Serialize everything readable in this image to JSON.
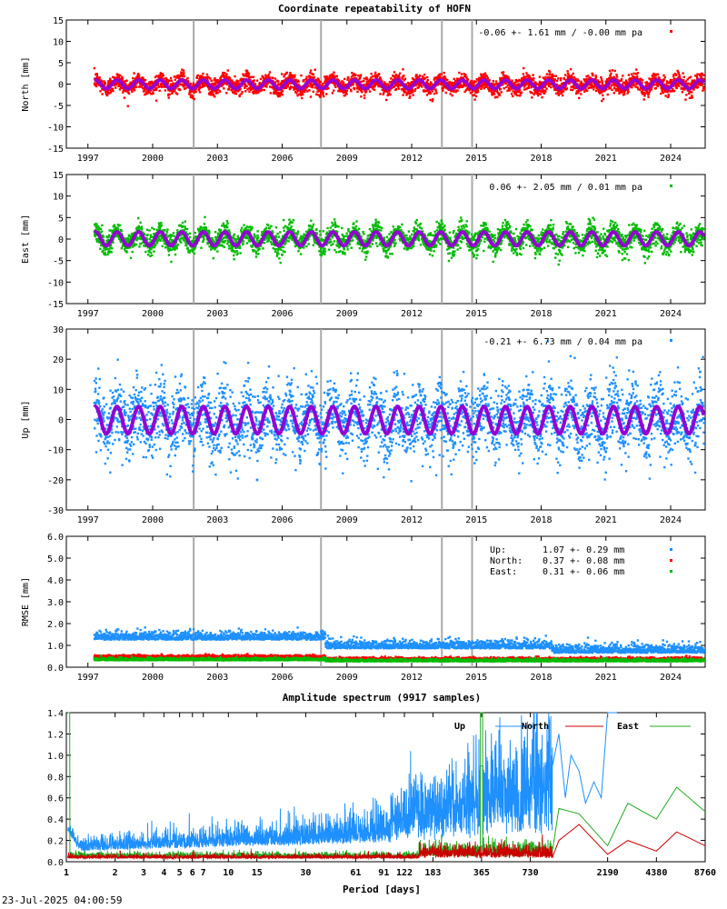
{
  "page_title": "Coordinate repeatability of HOFN",
  "timestamp": "23-Jul-2025 04:00:59",
  "colors": {
    "north": "#ff0000",
    "east": "#00bb00",
    "up": "#1e90ff",
    "model": "#9400d3",
    "break": "#aaaaaa",
    "spec_up": "#1e90ff",
    "spec_north": "#cc0000",
    "spec_east": "#22aa22"
  },
  "chart_data": [
    {
      "id": "north",
      "type": "scatter",
      "ylabel": "North [mm]",
      "annotation": "-0.06 +- 1.61 mm / -0.00 mm pa",
      "xlim": [
        1996.0,
        2025.6
      ],
      "ylim": [
        -15,
        15
      ],
      "yticks": [
        "15",
        "10",
        "5",
        "0",
        "-5",
        "-10",
        "-15"
      ],
      "xticks": [
        "1997",
        "2000",
        "2003",
        "2006",
        "2009",
        "2012",
        "2015",
        "2018",
        "2021",
        "2024"
      ],
      "data_start": 1997.3,
      "data_end": 2025.55,
      "noise_sd": 1.61,
      "seasonal_amplitude": 1.0,
      "trend_mm_pa": 0.0,
      "offset": -0.06,
      "equipment_changes": [
        2001.9,
        2007.8,
        2013.4,
        2014.8
      ]
    },
    {
      "id": "east",
      "type": "scatter",
      "ylabel": "East [mm]",
      "annotation": "0.06 +- 2.05 mm /  0.01 mm pa",
      "xlim": [
        1996.0,
        2025.6
      ],
      "ylim": [
        -15,
        15
      ],
      "yticks": [
        "15",
        "10",
        "5",
        "0",
        "-5",
        "-10",
        "-15"
      ],
      "xticks": [
        "1997",
        "2000",
        "2003",
        "2006",
        "2009",
        "2012",
        "2015",
        "2018",
        "2021",
        "2024"
      ],
      "data_start": 1997.3,
      "data_end": 2025.55,
      "noise_sd": 2.05,
      "seasonal_amplitude": 1.6,
      "trend_mm_pa": 0.01,
      "offset": 0.06,
      "equipment_changes": [
        2001.9,
        2007.8,
        2013.4,
        2014.8
      ]
    },
    {
      "id": "up",
      "type": "scatter",
      "ylabel": "Up [mm]",
      "annotation": "-0.21 +- 6.73 mm /  0.04 mm pa",
      "xlim": [
        1996.0,
        2025.6
      ],
      "ylim": [
        -30,
        30
      ],
      "yticks": [
        "30",
        "20",
        "10",
        "0",
        "-10",
        "-20",
        "-30"
      ],
      "xticks": [
        "1997",
        "2000",
        "2003",
        "2006",
        "2009",
        "2012",
        "2015",
        "2018",
        "2021",
        "2024"
      ],
      "data_start": 1997.3,
      "data_end": 2025.55,
      "noise_sd": 6.73,
      "seasonal_amplitude": 4.5,
      "trend_mm_pa": 0.04,
      "offset": -0.21,
      "equipment_changes": [
        2001.9,
        2007.8,
        2013.4,
        2014.8
      ]
    },
    {
      "id": "rmse",
      "type": "scatter",
      "ylabel": "RMSE [mm]",
      "xlim": [
        1996.0,
        2025.6
      ],
      "ylim": [
        0,
        6
      ],
      "yticks": [
        "6.0",
        "5.0",
        "4.0",
        "3.0",
        "2.0",
        "1.0",
        "0.0"
      ],
      "xticks": [
        "1997",
        "2000",
        "2003",
        "2006",
        "2009",
        "2012",
        "2015",
        "2018",
        "2021",
        "2024"
      ],
      "equipment_changes": [
        2001.9,
        2007.8,
        2013.4,
        2014.8
      ],
      "legend": [
        {
          "name": "Up:",
          "value": "1.07 +- 0.29 mm",
          "mean": 1.07
        },
        {
          "name": "North:",
          "value": "0.37 +- 0.08 mm",
          "mean": 0.37
        },
        {
          "name": "East:",
          "value": "0.31 +- 0.06 mm",
          "mean": 0.31
        }
      ]
    },
    {
      "id": "spectrum",
      "type": "line",
      "title": "Amplitude spectrum (9917 samples)",
      "xlabel": "Period [days]",
      "xscale": "log",
      "xlim": [
        1,
        8760
      ],
      "ylim": [
        0,
        1.4
      ],
      "yticks": [
        "1.4",
        "1.2",
        "1.0",
        "0.8",
        "0.6",
        "0.4",
        "0.2",
        "0.0"
      ],
      "xticks": [
        "1",
        "2",
        "3",
        "4",
        "5",
        "6",
        "7",
        "10",
        "15",
        "30",
        "61",
        "91",
        "122",
        "183",
        "365",
        "730",
        "2190",
        "4380",
        "8760"
      ],
      "series": [
        {
          "name": "Up"
        },
        {
          "name": "North"
        },
        {
          "name": "East"
        }
      ],
      "long_period_points": {
        "east": [
          [
            1095,
            0.5
          ],
          [
            1460,
            0.45
          ],
          [
            2190,
            0.15
          ],
          [
            2920,
            0.55
          ],
          [
            4380,
            0.4
          ],
          [
            5840,
            0.7
          ],
          [
            8760,
            0.47
          ]
        ],
        "north": [
          [
            1095,
            0.2
          ],
          [
            1460,
            0.35
          ],
          [
            2190,
            0.07
          ],
          [
            2920,
            0.2
          ],
          [
            4380,
            0.1
          ],
          [
            5840,
            0.28
          ],
          [
            8760,
            0.15
          ]
        ]
      }
    }
  ]
}
